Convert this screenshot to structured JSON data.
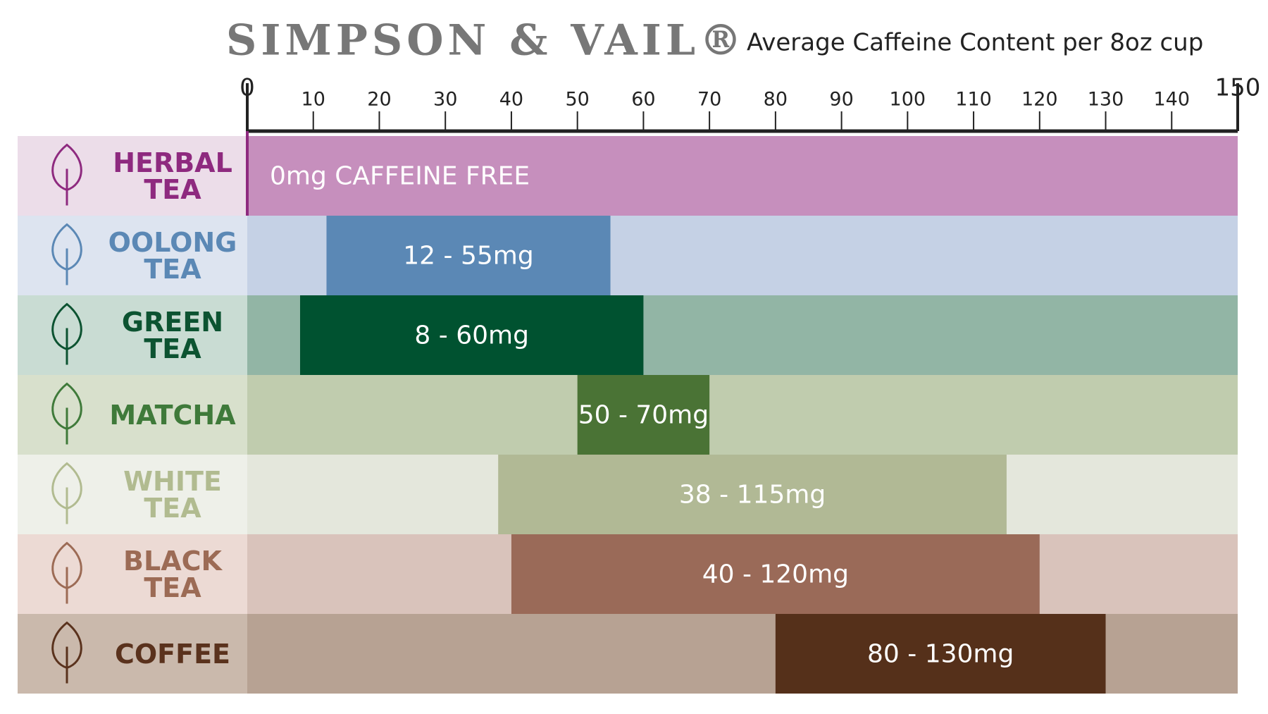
{
  "chart_data": {
    "type": "range-bar",
    "title": "SIMPSON & VAIL®",
    "subtitle": "Average Caffeine Content per 8oz cup",
    "categories": [
      "HERBAL TEA",
      "OOLONG TEA",
      "GREEN TEA",
      "MATCHA",
      "WHITE TEA",
      "BLACK TEA",
      "COFFEE"
    ],
    "low": [
      0,
      12,
      8,
      50,
      38,
      40,
      80
    ],
    "high": [
      0,
      55,
      60,
      70,
      115,
      120,
      130
    ],
    "value_labels": [
      "0mg CAFFEINE FREE",
      "12 - 55mg",
      "8 - 60mg",
      "50 - 70mg",
      "38 - 115mg",
      "40 - 120mg",
      "80 - 130mg"
    ],
    "bar_colors": [
      "#8e2a7f",
      "#5b88b5",
      "#005230",
      "#4a7335",
      "#b1b995",
      "#9a6a58",
      "#55301a"
    ],
    "row_colors": [
      "#c68fbd",
      "#c5d1e5",
      "#92b5a5",
      "#c0ccae",
      "#e4e7dc",
      "#d9c3bb",
      "#b7a293"
    ],
    "panel_colors": [
      "#ecdde9",
      "#dde4f0",
      "#c9dcd3",
      "#d8e0cc",
      "#eef0e9",
      "#ecdad4",
      "#cab9ac"
    ],
    "label_colors": [
      "#8e2a7f",
      "#5b88b5",
      "#0c5331",
      "#3f7a3a",
      "#b1bb90",
      "#9c6b55",
      "#5a321d"
    ],
    "xlim": [
      0,
      150
    ],
    "xticks": [
      0,
      10,
      20,
      30,
      40,
      50,
      60,
      70,
      80,
      90,
      100,
      110,
      120,
      130,
      140,
      150
    ]
  }
}
